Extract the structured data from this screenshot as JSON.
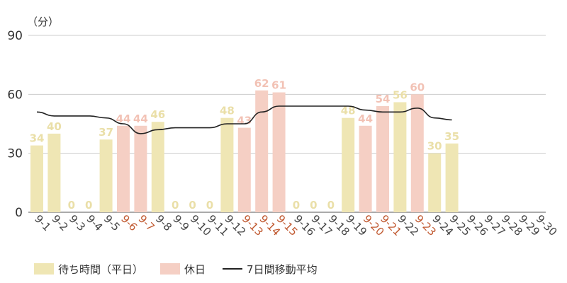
{
  "chart_data": {
    "type": "bar",
    "unit_label": "（分）",
    "categories": [
      "9-1",
      "9-2",
      "9-3",
      "9-4",
      "9-5",
      "9-6",
      "9-7",
      "9-8",
      "9-9",
      "9-10",
      "9-11",
      "9-12",
      "9-13",
      "9-14",
      "9-15",
      "9-16",
      "9-17",
      "9-18",
      "9-19",
      "9-20",
      "9-21",
      "9-22",
      "9-23",
      "9-24",
      "9-25",
      "9-26",
      "9-27",
      "9-28",
      "9-29",
      "9-30"
    ],
    "holiday_categories": [
      "9-6",
      "9-7",
      "9-13",
      "9-14",
      "9-15",
      "9-20",
      "9-21",
      "9-23"
    ],
    "values": [
      34,
      40,
      0,
      0,
      37,
      44,
      44,
      46,
      0,
      0,
      0,
      48,
      43,
      62,
      61,
      0,
      0,
      0,
      48,
      44,
      54,
      56,
      60,
      30,
      35,
      null,
      null,
      null,
      null,
      null
    ],
    "day_types": [
      "weekday",
      "weekday",
      "weekday",
      "weekday",
      "weekday",
      "holiday",
      "holiday",
      "weekday",
      "weekday",
      "weekday",
      "weekday",
      "weekday",
      "holiday",
      "holiday",
      "holiday",
      "weekday",
      "weekday",
      "weekday",
      "weekday",
      "holiday",
      "holiday",
      "weekday",
      "holiday",
      "weekday",
      "weekday",
      null,
      null,
      null,
      null,
      null
    ],
    "series": [
      {
        "name": "待ち時間（平日）",
        "color": "#efe6b4"
      },
      {
        "name": "休日",
        "color": "#f5cfc4"
      },
      {
        "name": "7日間移動平均",
        "color": "#222222",
        "values": [
          51,
          49,
          49,
          49,
          48,
          45,
          40,
          42,
          43,
          43,
          43,
          45,
          45,
          51,
          54,
          54,
          54,
          54,
          54,
          52,
          51,
          51,
          53,
          48,
          47,
          null,
          null,
          null,
          null,
          null
        ]
      }
    ],
    "ylim": [
      0,
      90
    ],
    "yticks": [
      0,
      30,
      60,
      90
    ],
    "grid": true,
    "legend_position": "bottom-left",
    "colors": {
      "weekday_bar": "#efe6b4",
      "holiday_bar": "#f5cfc4",
      "weekday_label": "#eadfa8",
      "holiday_label": "#f2c2b5",
      "holiday_tick": "#c0582f",
      "tick": "#444444",
      "grid": "#cccccc",
      "axis": "#555555"
    }
  },
  "legend": {
    "weekday": "待ち時間（平日）",
    "holiday": "休日",
    "moving_avg": "7日間移動平均"
  }
}
